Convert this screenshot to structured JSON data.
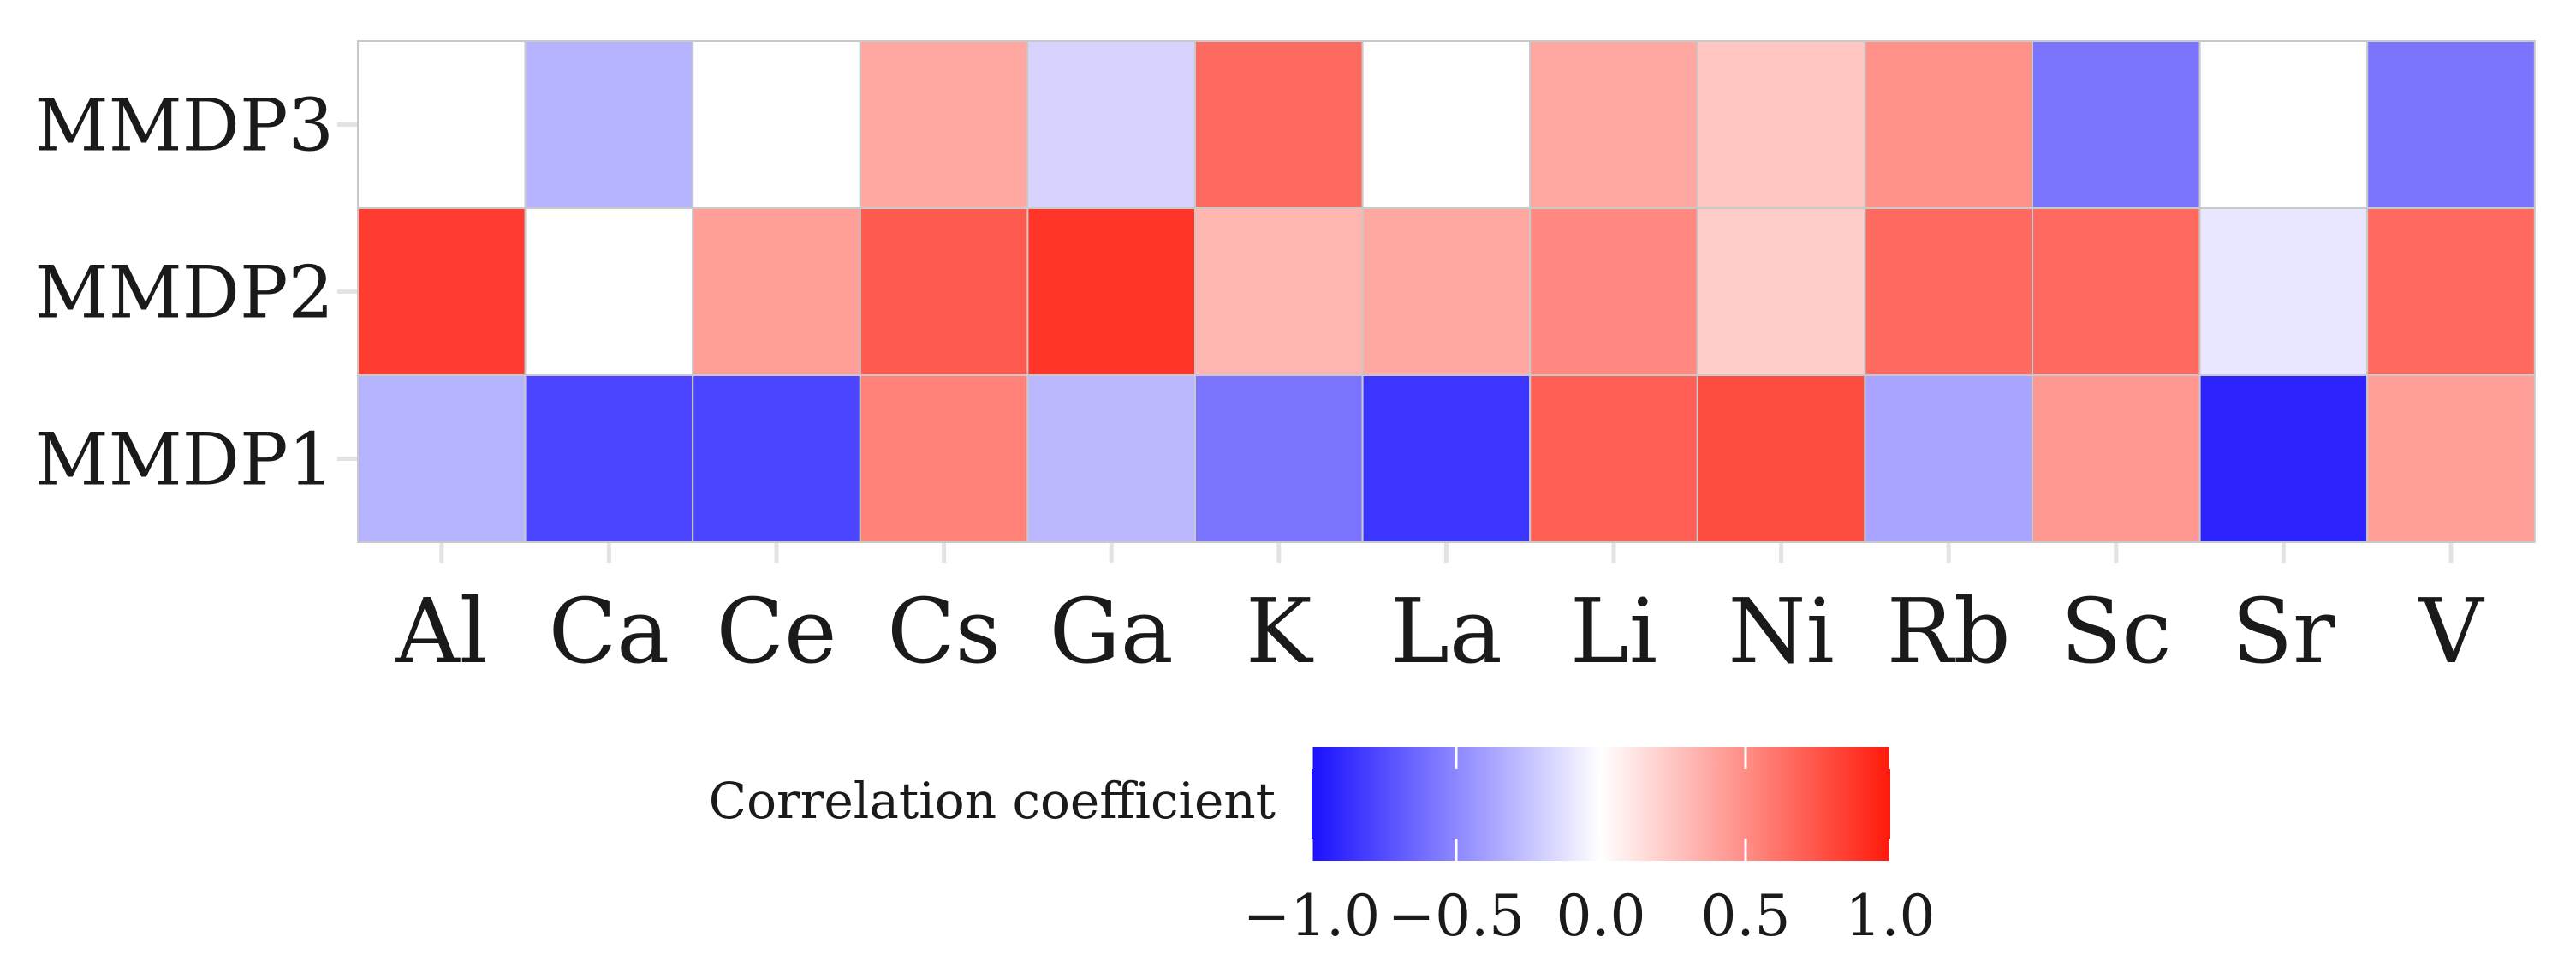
{
  "chart_data": {
    "type": "heatmap",
    "title": "",
    "xlabel": "",
    "ylabel": "",
    "columns": [
      "Al",
      "Ca",
      "Ce",
      "Cs",
      "Ga",
      "K",
      "La",
      "Li",
      "Ni",
      "Rb",
      "Sc",
      "Sr",
      "V"
    ],
    "rows": [
      "MMDP3",
      "MMDP2",
      "MMDP1"
    ],
    "values": [
      [
        0.0,
        -0.32,
        0.0,
        0.38,
        -0.18,
        0.65,
        0.0,
        0.38,
        0.25,
        0.48,
        -0.58,
        0.0,
        -0.58
      ],
      [
        0.85,
        0.0,
        0.42,
        0.72,
        0.88,
        0.32,
        0.38,
        0.52,
        0.22,
        0.65,
        0.65,
        -0.1,
        0.65
      ],
      [
        -0.32,
        -0.78,
        -0.78,
        0.55,
        -0.3,
        -0.58,
        -0.85,
        0.7,
        0.78,
        -0.38,
        0.45,
        -0.92,
        0.42
      ]
    ],
    "legend": {
      "title": "Correlation coefficient",
      "min": -1.0,
      "max": 1.0,
      "ticks": [
        -1.0,
        -0.5,
        0.0,
        0.5,
        1.0
      ],
      "tick_labels": [
        "−1.0",
        "−0.5",
        "0.0",
        "0.5",
        "1.0"
      ],
      "position": "bottom"
    },
    "colors": {
      "low": "#1a10ff",
      "mid": "#ffffff",
      "high": "#ff1a0a"
    },
    "grid": true
  }
}
